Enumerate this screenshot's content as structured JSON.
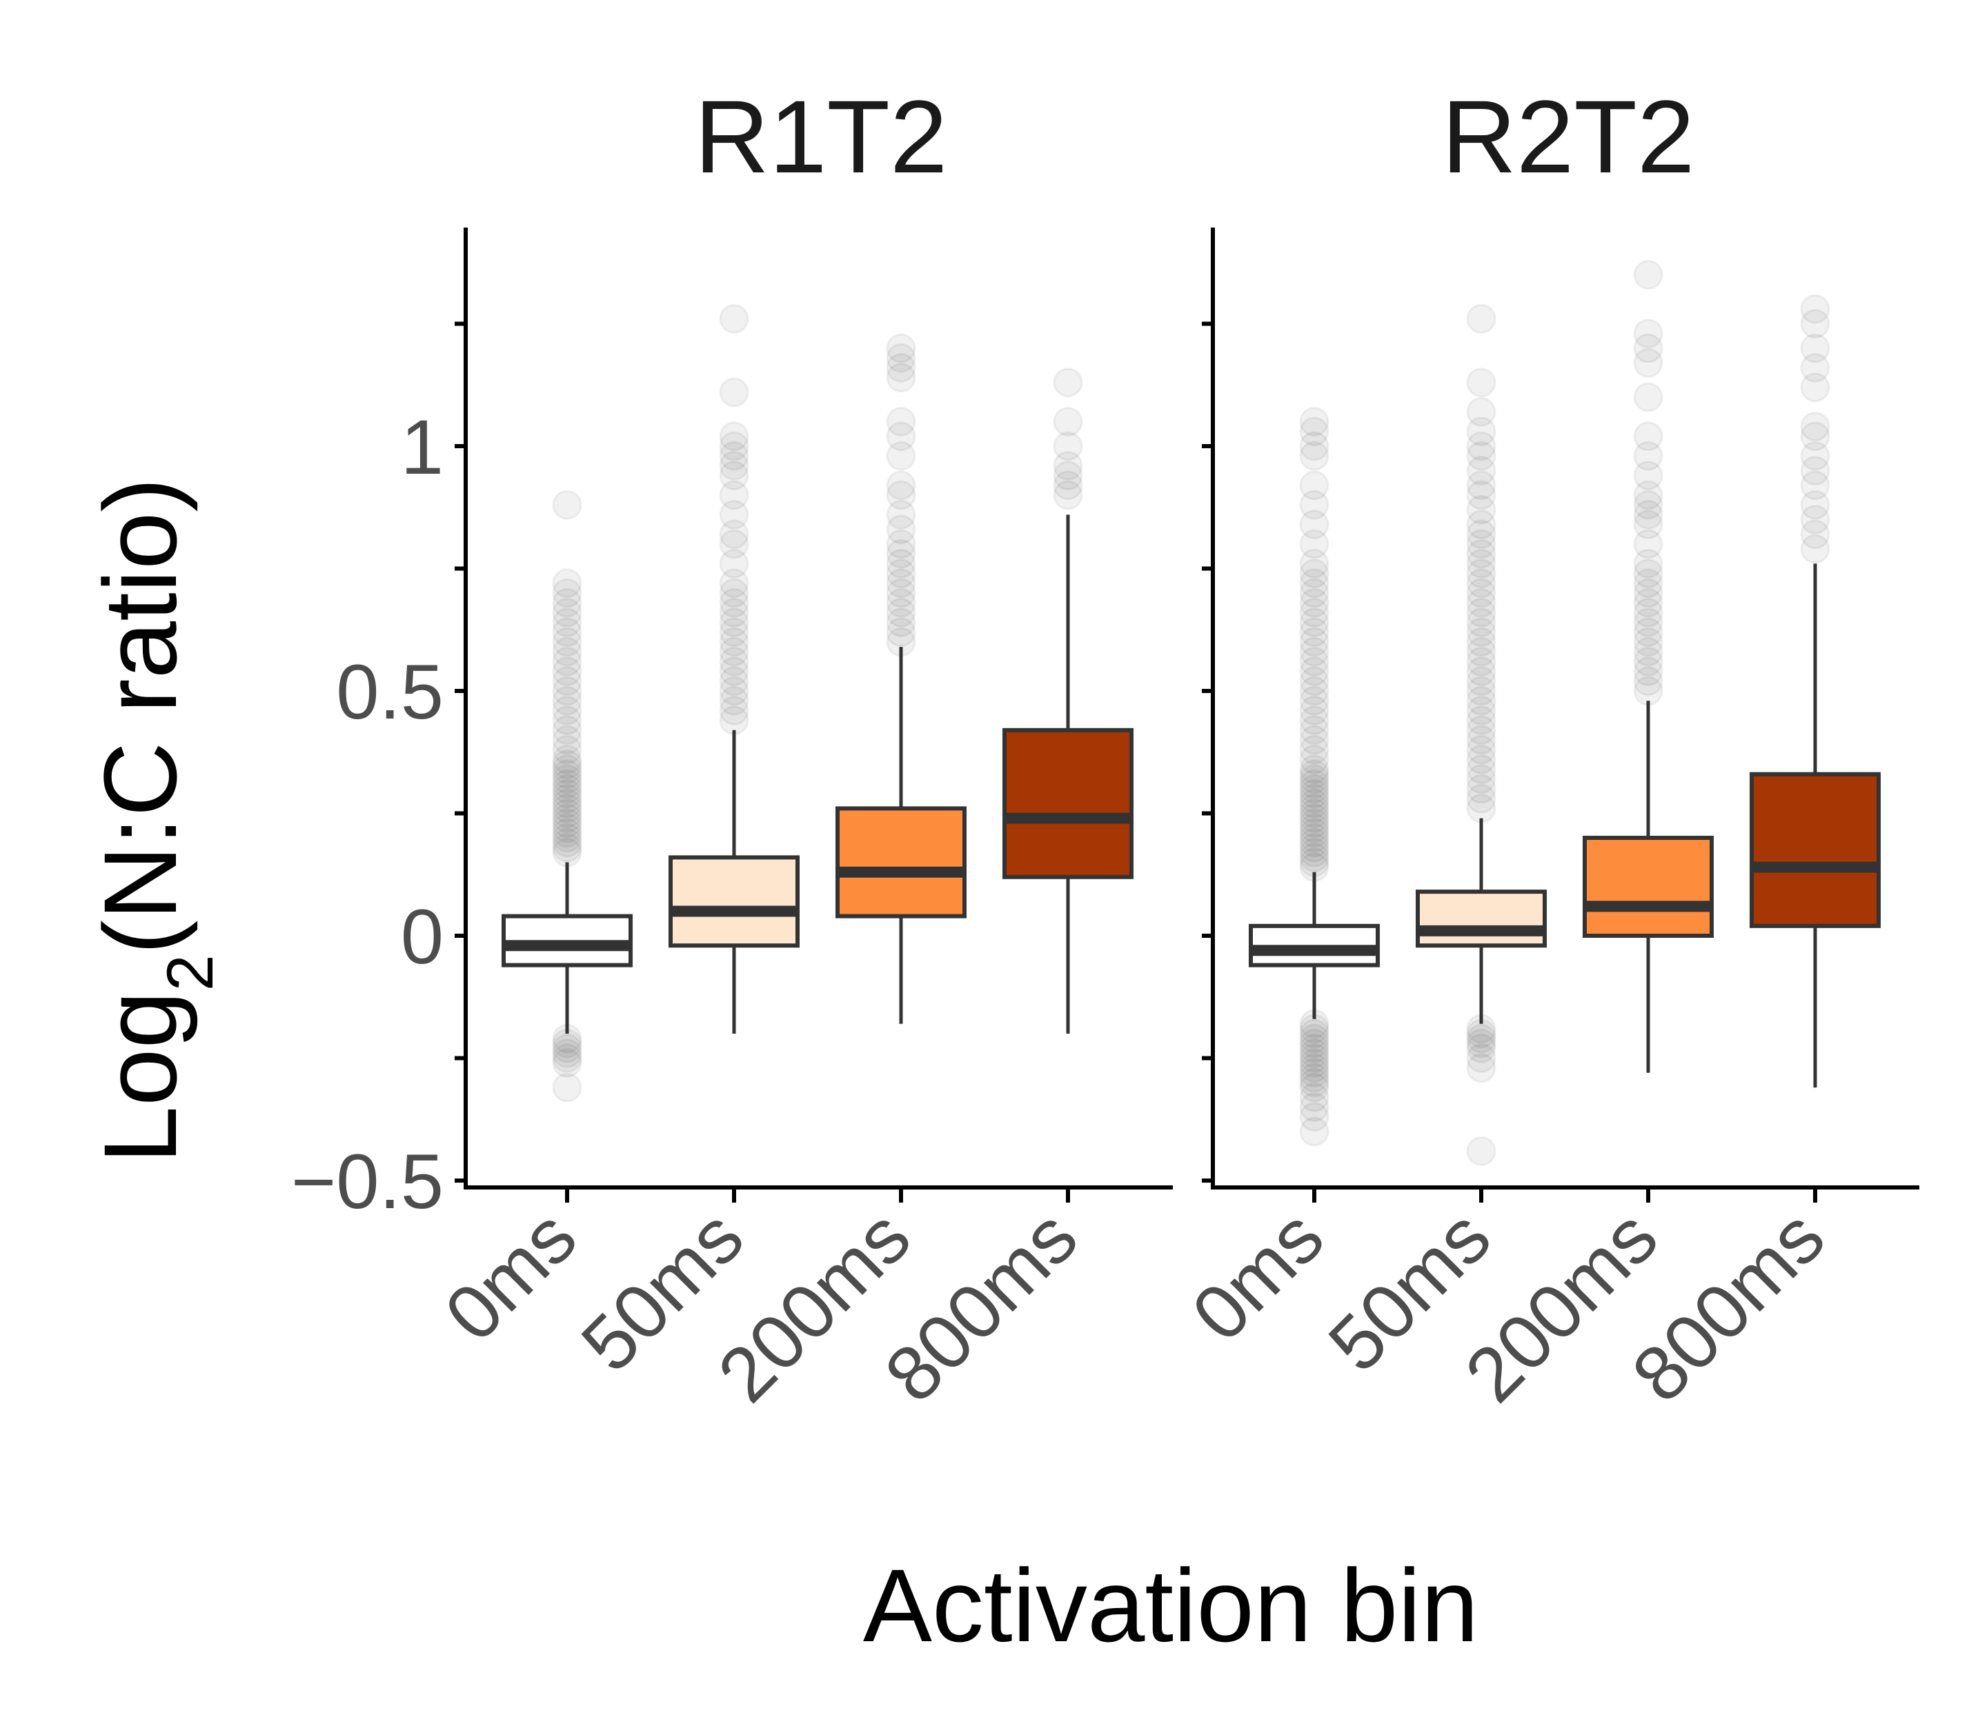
{
  "chart_data": {
    "type": "boxplot",
    "xlabel": "Activation bin",
    "ylabel": {
      "prefix": "Log",
      "subscript": "2",
      "suffix": "(N:C ratio)"
    },
    "ylim": [
      -0.5,
      1.4
    ],
    "y_ticks": [
      {
        "value": -0.5,
        "label": "−0.5"
      },
      {
        "value": 0,
        "label": "0"
      },
      {
        "value": 0.5,
        "label": "0.5"
      },
      {
        "value": 1,
        "label": "1"
      }
    ],
    "y_minor_ticks": [
      -0.25,
      0.25,
      0.75,
      1.25
    ],
    "categories": [
      "0ms",
      "50ms",
      "200ms",
      "800ms"
    ],
    "fill_colors": [
      "#FFFFFF",
      "#FEE6CE",
      "#FD8D3C",
      "#A63603"
    ],
    "panels": [
      {
        "title": "R1T2",
        "boxes": [
          {
            "category": "0ms",
            "q1": -0.06,
            "median": -0.02,
            "q3": 0.04,
            "whisker_low": -0.2,
            "whisker_high": 0.15,
            "outliers": [
              0.88,
              0.72,
              0.7,
              0.68,
              0.66,
              0.64,
              0.62,
              0.6,
              0.58,
              0.56,
              0.54,
              0.52,
              0.5,
              0.48,
              0.46,
              0.44,
              0.42,
              0.4,
              0.38,
              0.36,
              0.35,
              0.34,
              0.33,
              0.32,
              0.31,
              0.3,
              0.29,
              0.28,
              0.27,
              0.26,
              0.25,
              0.24,
              0.23,
              0.22,
              0.21,
              0.2,
              0.19,
              0.18,
              0.17,
              -0.21,
              -0.22,
              -0.23,
              -0.24,
              -0.25,
              -0.26,
              -0.31
            ]
          },
          {
            "category": "50ms",
            "q1": -0.02,
            "median": 0.05,
            "q3": 0.16,
            "whisker_low": -0.2,
            "whisker_high": 0.42,
            "outliers": [
              1.26,
              1.11,
              1.02,
              1.0,
              0.98,
              0.96,
              0.94,
              0.9,
              0.86,
              0.82,
              0.8,
              0.76,
              0.72,
              0.7,
              0.68,
              0.66,
              0.64,
              0.62,
              0.6,
              0.58,
              0.56,
              0.54,
              0.52,
              0.5,
              0.48,
              0.46,
              0.44
            ]
          },
          {
            "category": "200ms",
            "q1": 0.04,
            "median": 0.13,
            "q3": 0.26,
            "whisker_low": -0.18,
            "whisker_high": 0.59,
            "outliers": [
              1.2,
              1.18,
              1.16,
              1.14,
              1.05,
              1.02,
              0.98,
              0.92,
              0.9,
              0.86,
              0.83,
              0.8,
              0.78,
              0.76,
              0.74,
              0.72,
              0.7,
              0.68,
              0.66,
              0.64,
              0.62,
              0.6
            ]
          },
          {
            "category": "800ms",
            "q1": 0.12,
            "median": 0.24,
            "q3": 0.42,
            "whisker_low": -0.2,
            "whisker_high": 0.86,
            "outliers": [
              1.13,
              1.05,
              1.0,
              0.96,
              0.94,
              0.92,
              0.9
            ]
          }
        ]
      },
      {
        "title": "R2T2",
        "boxes": [
          {
            "category": "0ms",
            "q1": -0.06,
            "median": -0.03,
            "q3": 0.02,
            "whisker_low": -0.17,
            "whisker_high": 0.13,
            "outliers": [
              1.05,
              1.03,
              1.0,
              0.98,
              0.92,
              0.88,
              0.84,
              0.8,
              0.76,
              0.74,
              0.72,
              0.7,
              0.68,
              0.66,
              0.64,
              0.62,
              0.6,
              0.58,
              0.56,
              0.54,
              0.52,
              0.5,
              0.48,
              0.46,
              0.44,
              0.42,
              0.4,
              0.38,
              0.36,
              0.34,
              0.33,
              0.32,
              0.31,
              0.3,
              0.29,
              0.28,
              0.27,
              0.26,
              0.25,
              0.24,
              0.23,
              0.22,
              0.21,
              0.2,
              0.19,
              0.18,
              0.17,
              0.16,
              0.15,
              0.14,
              -0.18,
              -0.19,
              -0.2,
              -0.21,
              -0.22,
              -0.23,
              -0.24,
              -0.25,
              -0.26,
              -0.27,
              -0.28,
              -0.29,
              -0.3,
              -0.31,
              -0.33,
              -0.35,
              -0.37,
              -0.4
            ]
          },
          {
            "category": "50ms",
            "q1": -0.02,
            "median": 0.01,
            "q3": 0.09,
            "whisker_low": -0.18,
            "whisker_high": 0.24,
            "outliers": [
              1.26,
              1.13,
              1.07,
              1.03,
              1.0,
              0.98,
              0.95,
              0.92,
              0.9,
              0.87,
              0.84,
              0.82,
              0.8,
              0.78,
              0.76,
              0.74,
              0.72,
              0.7,
              0.68,
              0.66,
              0.64,
              0.62,
              0.6,
              0.58,
              0.56,
              0.54,
              0.52,
              0.5,
              0.48,
              0.46,
              0.44,
              0.42,
              0.4,
              0.38,
              0.36,
              0.34,
              0.32,
              0.3,
              0.28,
              0.26,
              -0.19,
              -0.2,
              -0.21,
              -0.22,
              -0.23,
              -0.25,
              -0.27,
              -0.44
            ]
          },
          {
            "category": "200ms",
            "q1": 0.0,
            "median": 0.06,
            "q3": 0.2,
            "whisker_low": -0.28,
            "whisker_high": 0.48,
            "outliers": [
              1.35,
              1.23,
              1.2,
              1.17,
              1.1,
              1.02,
              0.98,
              0.94,
              0.9,
              0.88,
              0.86,
              0.84,
              0.8,
              0.76,
              0.74,
              0.72,
              0.7,
              0.68,
              0.66,
              0.64,
              0.62,
              0.6,
              0.58,
              0.56,
              0.54,
              0.52,
              0.5
            ]
          },
          {
            "category": "800ms",
            "q1": 0.02,
            "median": 0.14,
            "q3": 0.33,
            "whisker_low": -0.31,
            "whisker_high": 0.76,
            "outliers": [
              1.28,
              1.25,
              1.2,
              1.16,
              1.12,
              1.04,
              1.02,
              0.98,
              0.95,
              0.92,
              0.88,
              0.85,
              0.82,
              0.79
            ]
          }
        ]
      }
    ]
  }
}
